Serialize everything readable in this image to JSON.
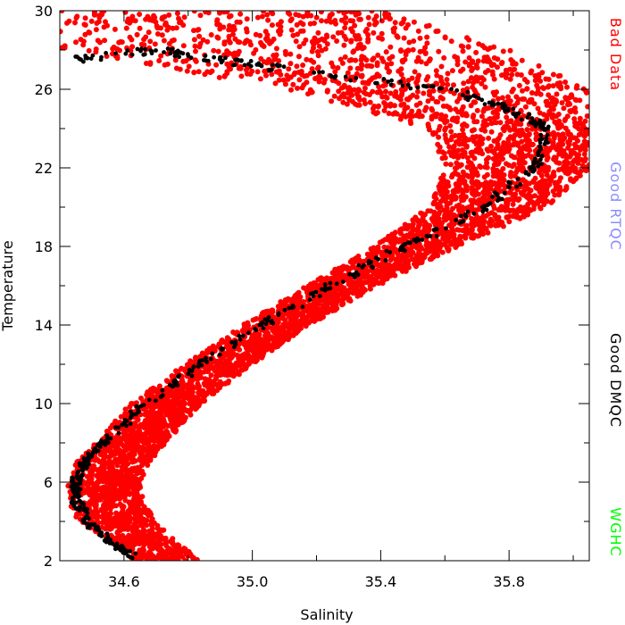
{
  "chart_data": {
    "type": "scatter",
    "xlabel": "Salinity",
    "ylabel": "Temperature",
    "xlim": [
      34.4,
      36.05
    ],
    "ylim": [
      2,
      30
    ],
    "xticks": [
      34.6,
      35.0,
      35.4,
      35.8
    ],
    "xtick_labels": [
      "34.6",
      "35.0",
      "35.4",
      "35.8"
    ],
    "yticks": [
      2,
      6,
      10,
      14,
      18,
      22,
      26,
      30
    ],
    "ytick_labels": [
      "2",
      "6",
      "10",
      "14",
      "18",
      "22",
      "26",
      "30"
    ],
    "grid": false,
    "legend_placement": "right (vertical text)",
    "legend": [
      {
        "label": "Bad Data",
        "color": "#ff0000"
      },
      {
        "label": "Good RTQC",
        "color": "#8c8cff"
      },
      {
        "label": "Good DMQC",
        "color": "#000000"
      },
      {
        "label": "WGHC",
        "color": "#00ff00"
      }
    ],
    "series": [
      {
        "name": "Bad Data",
        "color": "#ff0000",
        "envelope": [
          {
            "t": 2.0,
            "s_min": 34.63,
            "s_max": 34.84
          },
          {
            "t": 3.0,
            "s_min": 34.55,
            "s_max": 34.76
          },
          {
            "t": 4.0,
            "s_min": 34.46,
            "s_max": 34.7
          },
          {
            "t": 5.0,
            "s_min": 34.42,
            "s_max": 34.66
          },
          {
            "t": 6.0,
            "s_min": 34.42,
            "s_max": 34.65
          },
          {
            "t": 7.0,
            "s_min": 34.45,
            "s_max": 34.68
          },
          {
            "t": 8.0,
            "s_min": 34.51,
            "s_max": 34.73
          },
          {
            "t": 10.0,
            "s_min": 34.62,
            "s_max": 34.84
          },
          {
            "t": 12.0,
            "s_min": 34.79,
            "s_max": 35.0
          },
          {
            "t": 14.0,
            "s_min": 34.97,
            "s_max": 35.18
          },
          {
            "t": 16.0,
            "s_min": 35.17,
            "s_max": 35.39
          },
          {
            "t": 18.0,
            "s_min": 35.38,
            "s_max": 35.64
          },
          {
            "t": 20.0,
            "s_min": 35.55,
            "s_max": 35.92
          },
          {
            "t": 22.0,
            "s_min": 35.6,
            "s_max": 36.05
          },
          {
            "t": 24.0,
            "s_min": 35.55,
            "s_max": 36.05
          },
          {
            "t": 26.0,
            "s_min": 35.1,
            "s_max": 36.05
          },
          {
            "t": 28.0,
            "s_min": 34.4,
            "s_max": 35.8
          },
          {
            "t": 30.0,
            "s_min": 34.4,
            "s_max": 35.4
          }
        ]
      },
      {
        "name": "Good DMQC",
        "color": "#000000",
        "track": [
          {
            "t": 2.2,
            "s": 34.63
          },
          {
            "t": 3.0,
            "s": 34.55
          },
          {
            "t": 4.0,
            "s": 34.49
          },
          {
            "t": 5.0,
            "s": 34.45
          },
          {
            "t": 6.0,
            "s": 34.45
          },
          {
            "t": 7.0,
            "s": 34.48
          },
          {
            "t": 8.0,
            "s": 34.53
          },
          {
            "t": 10.0,
            "s": 34.67
          },
          {
            "t": 12.0,
            "s": 34.84
          },
          {
            "t": 14.0,
            "s": 35.03
          },
          {
            "t": 16.0,
            "s": 35.24
          },
          {
            "t": 18.0,
            "s": 35.48
          },
          {
            "t": 20.0,
            "s": 35.72
          },
          {
            "t": 22.0,
            "s": 35.88
          },
          {
            "t": 24.0,
            "s": 35.92
          },
          {
            "t": 25.0,
            "s": 35.8
          },
          {
            "t": 26.0,
            "s": 35.6
          },
          {
            "t": 27.0,
            "s": 35.1
          },
          {
            "t": 27.5,
            "s": 34.9
          },
          {
            "t": 28.0,
            "s": 34.7
          },
          {
            "t": 27.5,
            "s": 34.45
          }
        ]
      }
    ]
  }
}
